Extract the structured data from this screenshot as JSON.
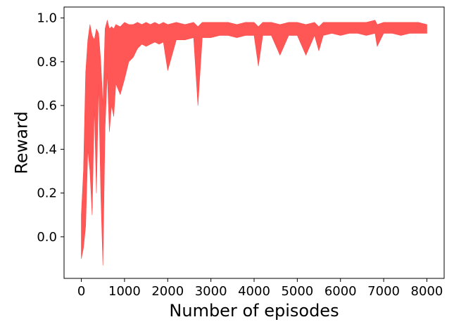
{
  "chart_data": {
    "type": "area",
    "title": "",
    "xlabel": "Number of episodes",
    "ylabel": "Reward",
    "xlim": [
      -400,
      8400
    ],
    "ylim": [
      -0.19,
      1.05
    ],
    "xticks": [
      0,
      1000,
      2000,
      3000,
      4000,
      5000,
      6000,
      7000,
      8000
    ],
    "xtick_labels": [
      "0",
      "1000",
      "2000",
      "3000",
      "4000",
      "5000",
      "6000",
      "7000",
      "8000"
    ],
    "yticks": [
      0.0,
      0.2,
      0.4,
      0.6,
      0.8,
      1.0
    ],
    "ytick_labels": [
      "0.0",
      "0.2",
      "0.4",
      "0.6",
      "0.8",
      "1.0"
    ],
    "grid": false,
    "legend": "none",
    "series": [
      {
        "color": "#ff4d4d",
        "x": [
          0,
          50,
          100,
          150,
          200,
          250,
          300,
          350,
          400,
          450,
          500,
          550,
          600,
          650,
          700,
          750,
          800,
          900,
          1000,
          1100,
          1200,
          1300,
          1400,
          1500,
          1600,
          1700,
          1800,
          1900,
          2000,
          2200,
          2400,
          2600,
          2700,
          2800,
          3000,
          3200,
          3400,
          3600,
          3800,
          4000,
          4100,
          4200,
          4400,
          4600,
          4800,
          5000,
          5200,
          5400,
          5500,
          5600,
          5800,
          6000,
          6200,
          6400,
          6600,
          6800,
          6850,
          7000,
          7200,
          7400,
          7600,
          7800,
          8000
        ],
        "lower": [
          -0.1,
          -0.05,
          0.05,
          0.4,
          0.3,
          0.1,
          0.6,
          0.2,
          0.7,
          0.2,
          -0.13,
          0.5,
          0.75,
          0.48,
          0.6,
          0.55,
          0.7,
          0.65,
          0.72,
          0.8,
          0.82,
          0.86,
          0.88,
          0.87,
          0.88,
          0.89,
          0.88,
          0.89,
          0.76,
          0.9,
          0.9,
          0.91,
          0.6,
          0.91,
          0.91,
          0.92,
          0.92,
          0.91,
          0.92,
          0.92,
          0.78,
          0.92,
          0.92,
          0.83,
          0.92,
          0.92,
          0.83,
          0.92,
          0.85,
          0.92,
          0.93,
          0.92,
          0.93,
          0.93,
          0.92,
          0.93,
          0.87,
          0.93,
          0.93,
          0.92,
          0.93,
          0.93,
          0.93
        ],
        "upper": [
          0.1,
          0.3,
          0.75,
          0.9,
          0.97,
          0.92,
          0.9,
          0.95,
          0.93,
          0.8,
          0.6,
          0.95,
          0.99,
          0.95,
          0.96,
          0.95,
          0.97,
          0.96,
          0.98,
          0.97,
          0.97,
          0.98,
          0.97,
          0.98,
          0.97,
          0.98,
          0.97,
          0.98,
          0.97,
          0.98,
          0.97,
          0.98,
          0.96,
          0.98,
          0.98,
          0.98,
          0.98,
          0.97,
          0.98,
          0.98,
          0.96,
          0.98,
          0.98,
          0.97,
          0.98,
          0.98,
          0.97,
          0.98,
          0.96,
          0.98,
          0.98,
          0.98,
          0.98,
          0.98,
          0.98,
          0.99,
          0.97,
          0.98,
          0.98,
          0.98,
          0.98,
          0.98,
          0.97
        ]
      }
    ]
  }
}
